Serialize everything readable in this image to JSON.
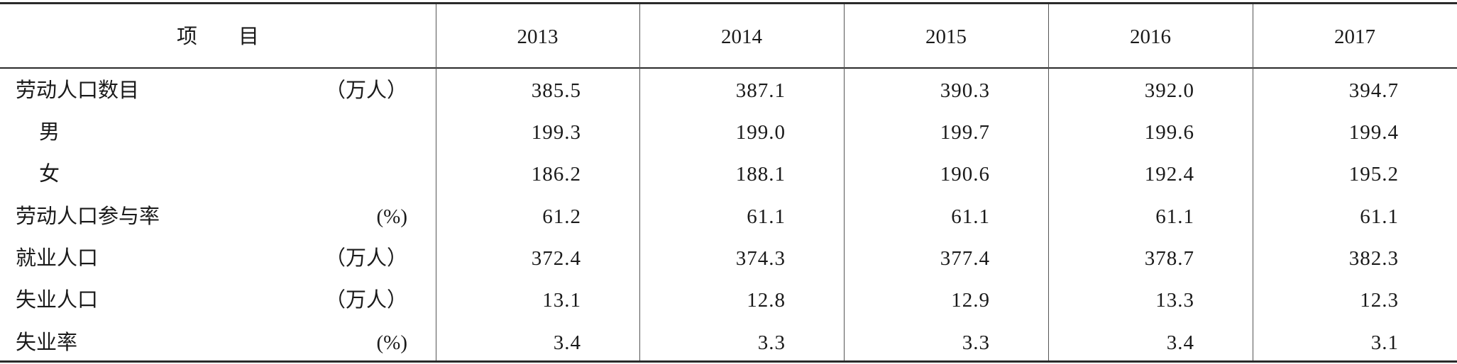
{
  "table": {
    "header": [
      "项　　目",
      "2013",
      "2014",
      "2015",
      "2016",
      "2017"
    ],
    "rows": [
      {
        "label": "劳动人口数目",
        "unit": "（万人）",
        "values": [
          "385.5",
          "387.1",
          "390.3",
          "392.0",
          "394.7"
        ]
      },
      {
        "label": "男",
        "values": [
          "199.3",
          "199.0",
          "199.7",
          "199.6",
          "199.4"
        ]
      },
      {
        "label": "女",
        "values": [
          "186.2",
          "188.1",
          "190.6",
          "192.4",
          "195.2"
        ]
      },
      {
        "label": "劳动人口参与率",
        "unit": "(%)",
        "values": [
          "61.2",
          "61.1",
          "61.1",
          "61.1",
          "61.1"
        ]
      },
      {
        "label": "就业人口",
        "unit": "（万人）",
        "values": [
          "372.4",
          "374.3",
          "377.4",
          "378.7",
          "382.3"
        ]
      },
      {
        "label": "失业人口",
        "unit": "（万人）",
        "values": [
          "13.1",
          "12.8",
          "12.9",
          "13.3",
          "12.3"
        ]
      },
      {
        "label": "失业率",
        "unit": "(%)",
        "values": [
          "3.4",
          "3.3",
          "3.3",
          "3.4",
          "3.1"
        ]
      }
    ]
  }
}
